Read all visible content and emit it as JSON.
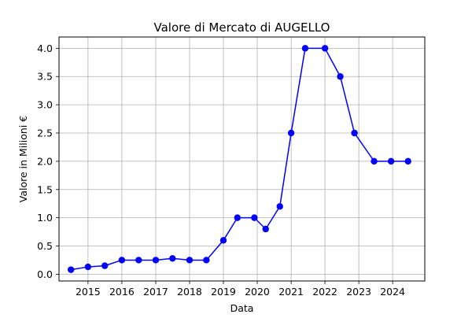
{
  "chart_data": {
    "type": "line",
    "title": "Valore di Mercato di AUGELLO",
    "xlabel": "Data",
    "ylabel": "Valore in Milioni €",
    "x_ticks": [
      "2015",
      "2016",
      "2017",
      "2018",
      "2019",
      "2020",
      "2021",
      "2022",
      "2023",
      "2024"
    ],
    "y_ticks": [
      "0.0",
      "0.5",
      "1.0",
      "1.5",
      "2.0",
      "2.5",
      "3.0",
      "3.5",
      "4.0"
    ],
    "xlim": [
      "2014-02-22",
      "2024-12-13"
    ],
    "ylim": [
      -0.12,
      4.2
    ],
    "grid": true,
    "line_color": "#0000ff",
    "series": [
      {
        "x": [
          "2014-07-01",
          "2015-01-01",
          "2015-07-01",
          "2016-01-01",
          "2016-07-01",
          "2017-01-01",
          "2017-07-01",
          "2018-01-01",
          "2018-07-01",
          "2019-01-01",
          "2019-06-01",
          "2019-12-01",
          "2020-04-01",
          "2020-09-01",
          "2021-01-01",
          "2021-06-01",
          "2022-01-01",
          "2022-06-15",
          "2022-11-15",
          "2023-06-15",
          "2023-12-15",
          "2024-06-15"
        ],
        "y": [
          0.08,
          0.13,
          0.15,
          0.25,
          0.25,
          0.25,
          0.28,
          0.25,
          0.25,
          0.6,
          1.0,
          1.0,
          0.8,
          1.2,
          2.5,
          4.0,
          4.0,
          3.5,
          2.5,
          2.0,
          2.0,
          2.0
        ]
      }
    ]
  }
}
